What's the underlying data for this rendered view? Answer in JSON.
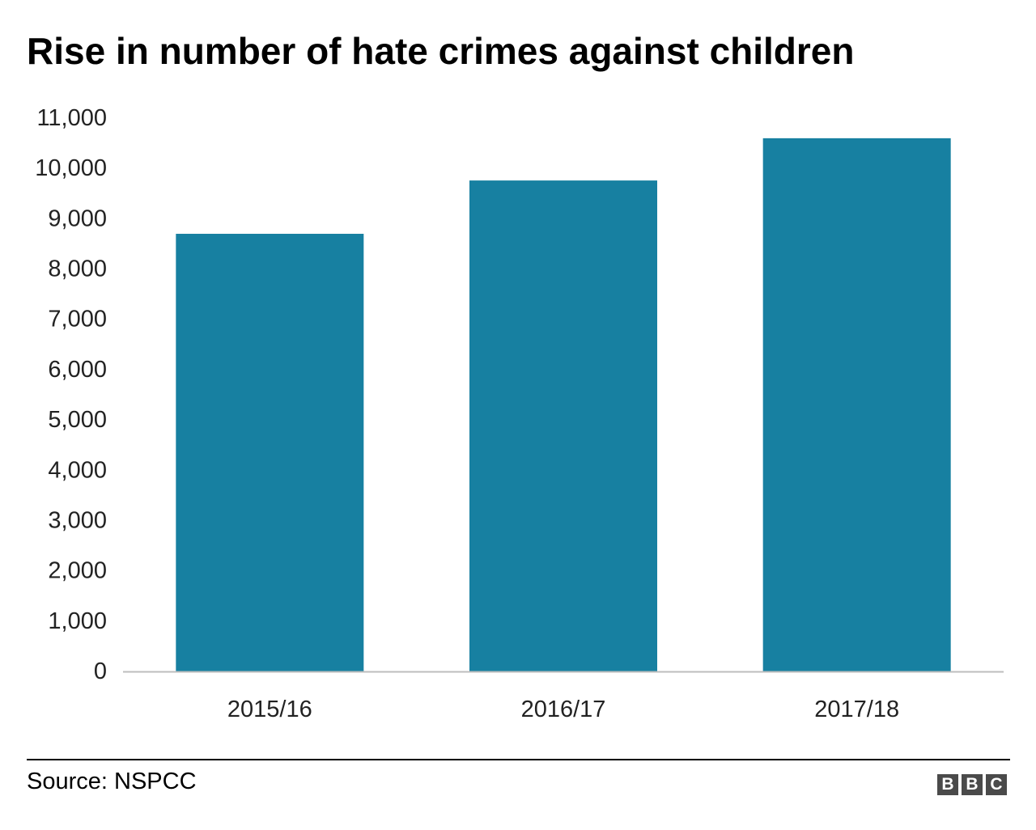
{
  "chart_data": {
    "type": "bar",
    "title": "Rise in number of hate crimes against children",
    "categories": [
      "2015/16",
      "2016/17",
      "2017/18"
    ],
    "values": [
      8700,
      9760,
      10600
    ],
    "xlabel": "",
    "ylabel": "",
    "ylim": [
      0,
      11000
    ],
    "yticks": [
      0,
      1000,
      2000,
      3000,
      4000,
      5000,
      6000,
      7000,
      8000,
      9000,
      10000,
      11000
    ],
    "ytick_labels": [
      "0",
      "1,000",
      "2,000",
      "3,000",
      "4,000",
      "5,000",
      "6,000",
      "7,000",
      "8,000",
      "9,000",
      "10,000",
      "11,000"
    ],
    "grid": false,
    "legend": "none",
    "bar_color": "#1780a1"
  },
  "footer": {
    "source": "Source: NSPCC",
    "logo_letters": [
      "B",
      "B",
      "C"
    ]
  }
}
